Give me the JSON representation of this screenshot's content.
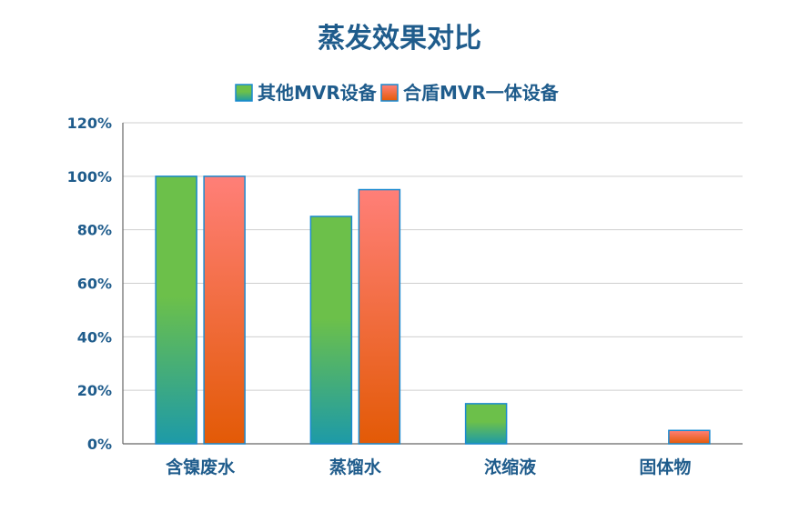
{
  "chart_data": {
    "type": "bar",
    "title": "蒸发效果对比",
    "categories": [
      "含镍废水",
      "蒸馏水",
      "浓缩液",
      "固体物"
    ],
    "series": [
      {
        "name": "其他MVR设备",
        "values": [
          100,
          85,
          15,
          0
        ],
        "color_top": "#6cc04a",
        "color_bottom": "#1d9aa8",
        "stroke": "#1a8ad0"
      },
      {
        "name": "合盾MVR一体设备",
        "values": [
          100,
          95,
          0,
          5
        ],
        "color_top": "#ff7f78",
        "color_bottom": "#e35a06",
        "stroke": "#1a8ad0"
      }
    ],
    "ylim": [
      0,
      120
    ],
    "yticks": [
      "0%",
      "20%",
      "40%",
      "60%",
      "80%",
      "100%",
      "120%"
    ],
    "ytick_values": [
      0,
      20,
      40,
      60,
      80,
      100,
      120
    ],
    "grid": true,
    "legend_position": "top-center",
    "xlabel": "",
    "ylabel": ""
  }
}
